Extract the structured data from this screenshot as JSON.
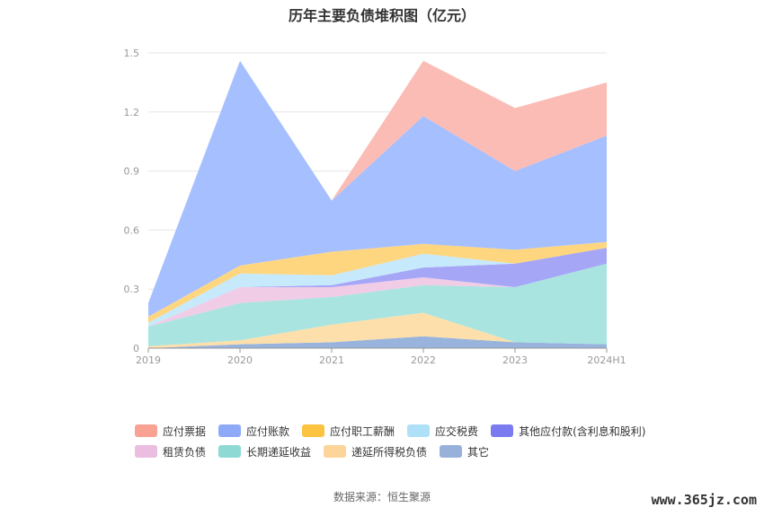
{
  "chart_data": {
    "type": "area",
    "stacked": true,
    "title": "历年主要负债堆积图（亿元）",
    "categories": [
      "2019",
      "2020",
      "2021",
      "2022",
      "2023",
      "2024H1"
    ],
    "ylim": [
      0,
      1.5
    ],
    "y_ticks": [
      "0",
      "0.3",
      "0.6",
      "0.9",
      "1.2",
      "1.5"
    ],
    "grid": true,
    "legend_position": "bottom",
    "series": [
      {
        "name": "其它",
        "color": "#98b4dd",
        "values": [
          0.0,
          0.02,
          0.03,
          0.06,
          0.03,
          0.02
        ]
      },
      {
        "name": "递延所得税负债",
        "color": "#fddfab",
        "values": [
          0.01,
          0.02,
          0.09,
          0.12,
          0.0,
          0.0
        ]
      },
      {
        "name": "长期递延收益",
        "color": "#a9e4e1",
        "values": [
          0.1,
          0.19,
          0.14,
          0.14,
          0.28,
          0.41
        ]
      },
      {
        "name": "租赁负债",
        "color": "#f0cce6",
        "values": [
          0.0,
          0.08,
          0.05,
          0.04,
          0.0,
          0.0
        ]
      },
      {
        "name": "其他应付款(含利息和股利)",
        "color": "#a6a6f6",
        "values": [
          0.0,
          0.0,
          0.01,
          0.05,
          0.12,
          0.08
        ]
      },
      {
        "name": "应交税费",
        "color": "#c6e9fb",
        "values": [
          0.02,
          0.07,
          0.05,
          0.07,
          0.0,
          0.0
        ]
      },
      {
        "name": "应付职工薪酬",
        "color": "#fed680",
        "values": [
          0.03,
          0.04,
          0.12,
          0.05,
          0.07,
          0.03
        ]
      },
      {
        "name": "应付账款",
        "color": "#a6bfff",
        "values": [
          0.07,
          1.04,
          0.26,
          0.65,
          0.4,
          0.54
        ]
      },
      {
        "name": "应付票据",
        "color": "#fbbcb5",
        "values": [
          0.0,
          0.0,
          0.0,
          0.28,
          0.32,
          0.27
        ]
      }
    ]
  },
  "legend": [
    {
      "label": "应付票据",
      "color": "#f9a193"
    },
    {
      "label": "应付账款",
      "color": "#8fa9f9"
    },
    {
      "label": "应付职工薪酬",
      "color": "#fbc33f"
    },
    {
      "label": "应交税费",
      "color": "#aee0f8"
    },
    {
      "label": "其他应付款(含利息和股利)",
      "color": "#7b7bf0"
    },
    {
      "label": "租赁负债",
      "color": "#ebbde0"
    },
    {
      "label": "长期递延收益",
      "color": "#8fd9d5"
    },
    {
      "label": "递延所得税负债",
      "color": "#fdd59a"
    },
    {
      "label": "其它",
      "color": "#98b1db"
    }
  ],
  "source": "数据来源：恒生聚源",
  "watermark": "www.365jz.com"
}
